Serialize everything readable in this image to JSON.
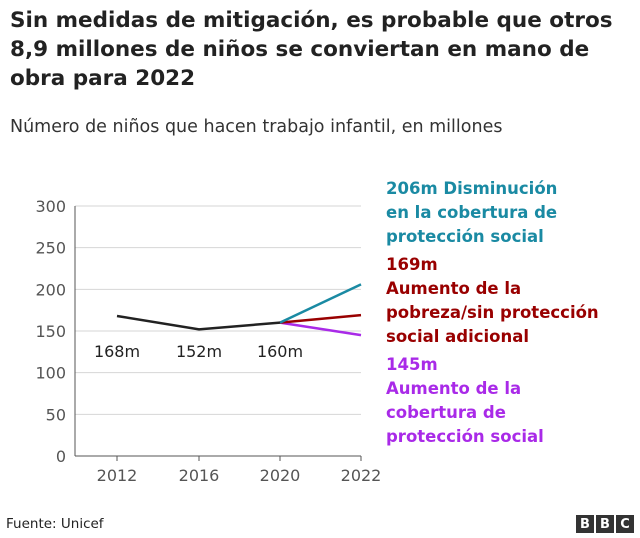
{
  "title": "Sin medidas de mitigación, es probable que otros 8,9 millones de niños se conviertan en mano de obra para 2022",
  "subtitle": "Número de niños que hacen trabajo infantil, en millones",
  "source": "Fuente: Unicef",
  "logo": "BBC",
  "chart_data": {
    "type": "line",
    "x": [
      2012,
      2016,
      2020,
      2022
    ],
    "ylim": [
      0,
      300
    ],
    "yticks": [
      0,
      50,
      100,
      150,
      200,
      250,
      300
    ],
    "xticks": [
      "2012",
      "2016",
      "2020",
      "2022"
    ],
    "grid": true,
    "series": [
      {
        "color": "#222222",
        "x": [
          2012,
          2016,
          2020
        ],
        "values": [
          168,
          152,
          160
        ],
        "labels": [
          "168m",
          "152m",
          "160m"
        ]
      },
      {
        "color": "#1a8aa3",
        "x": [
          2020,
          2022
        ],
        "values": [
          160,
          206
        ],
        "value_label": "206m",
        "name": "Disminución en la cobertura de protección social"
      },
      {
        "color": "#990000",
        "x": [
          2020,
          2022
        ],
        "values": [
          160,
          169
        ],
        "value_label": "169m",
        "name": "Aumento de la pobreza/sin protección social adicional"
      },
      {
        "color": "#a92ae8",
        "x": [
          2020,
          2022
        ],
        "values": [
          160,
          145
        ],
        "value_label": "145m",
        "name": "Aumento de la cobertura de protección social"
      }
    ]
  }
}
